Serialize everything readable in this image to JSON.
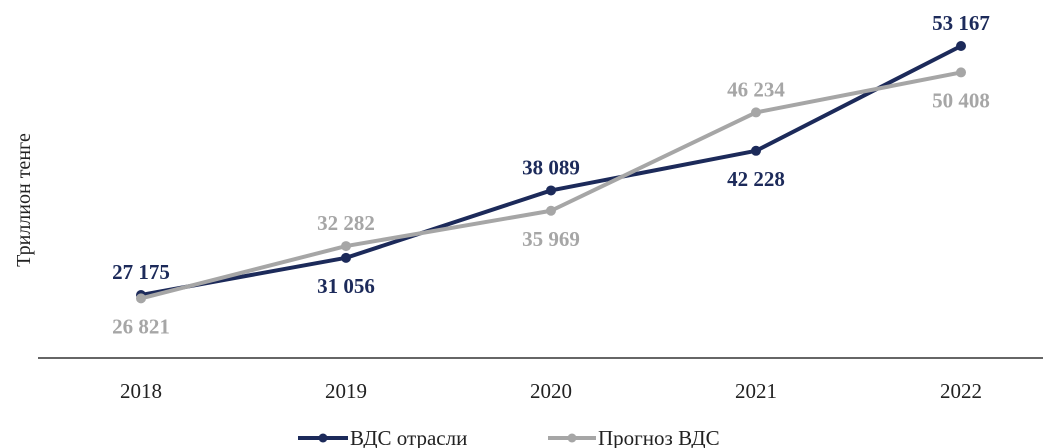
{
  "chart_data": {
    "type": "line",
    "title": "",
    "xlabel": "",
    "ylabel": "Триллион тенге",
    "categories": [
      "2018",
      "2019",
      "2020",
      "2021",
      "2022"
    ],
    "series": [
      {
        "name": "ВДС отрасли",
        "values": [
          27175,
          31056,
          38089,
          42228,
          53167
        ],
        "labels": [
          "27 175",
          "31 056",
          "38 089",
          "42 228",
          "53 167"
        ],
        "color": "#1c2a5a",
        "label_color": "#1c2a5a",
        "label_bold": true
      },
      {
        "name": "Прогноз ВДС",
        "values": [
          26821,
          32282,
          35969,
          46234,
          50408
        ],
        "labels": [
          "26 821",
          "32 282",
          "35 969",
          "46 234",
          "50 408"
        ],
        "color": "#a6a6a6",
        "label_color": "#a6a6a6",
        "label_bold": true
      }
    ],
    "ylim": [
      20000,
      56000
    ],
    "grid": false,
    "legend": "bottom"
  }
}
